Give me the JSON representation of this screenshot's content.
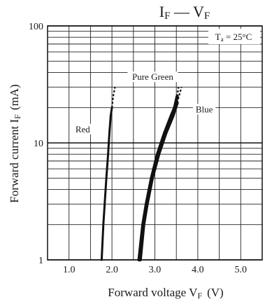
{
  "chart_data": {
    "type": "line",
    "title_main": "I",
    "title_sub1": "F",
    "title_dash": " — V",
    "title_sub2": "F",
    "xlabel_main": "Forward voltage  V",
    "xlabel_sub": "F",
    "xlabel_unit": "(V)",
    "ylabel_main": "Forward current  I",
    "ylabel_sub": "F",
    "ylabel_unit": "(mA)",
    "condition_main": "T",
    "condition_sub": "a",
    "condition_rest": " = 25°C",
    "x_scale": "linear",
    "y_scale": "log",
    "xlim": [
      0.5,
      5.5
    ],
    "ylim": [
      1,
      100
    ],
    "x_ticks": [
      1.0,
      2.0,
      3.0,
      4.0,
      5.0
    ],
    "x_tick_labels": [
      "1.0",
      "2.0",
      "3.0",
      "4.0",
      "5.0"
    ],
    "y_ticks": [
      1,
      10,
      100
    ],
    "y_tick_labels": [
      "1",
      "10",
      "100"
    ],
    "grid": true,
    "series": [
      {
        "name": "Red",
        "color": "#111111",
        "points": [
          [
            1.76,
            1
          ],
          [
            1.8,
            2
          ],
          [
            1.83,
            3
          ],
          [
            1.87,
            5
          ],
          [
            1.91,
            8
          ],
          [
            1.94,
            12
          ],
          [
            1.97,
            17
          ],
          [
            2.0,
            20
          ]
        ],
        "dashed_points": [
          [
            2.0,
            20
          ],
          [
            2.03,
            25
          ],
          [
            2.07,
            30
          ]
        ]
      },
      {
        "name": "Pure Green",
        "color": "#111111",
        "points": [
          [
            2.63,
            1
          ],
          [
            2.72,
            2
          ],
          [
            2.8,
            3
          ],
          [
            2.92,
            5
          ],
          [
            3.06,
            8
          ],
          [
            3.22,
            12
          ],
          [
            3.38,
            17
          ],
          [
            3.46,
            20
          ],
          [
            3.52,
            25
          ]
        ],
        "dashed_points": [
          [
            3.52,
            25
          ],
          [
            3.55,
            30
          ]
        ]
      },
      {
        "name": "Blue",
        "color": "#111111",
        "points": [
          [
            2.66,
            1
          ],
          [
            2.74,
            2
          ],
          [
            2.82,
            3
          ],
          [
            2.94,
            5
          ],
          [
            3.09,
            8
          ],
          [
            3.25,
            12
          ],
          [
            3.42,
            17
          ],
          [
            3.52,
            22
          ]
        ],
        "dashed_points": [
          [
            3.52,
            22
          ],
          [
            3.62,
            30
          ]
        ]
      }
    ],
    "annotations": [
      {
        "text": "Red",
        "x": 1.32,
        "y": 12.5
      },
      {
        "text": "Pure Green",
        "x": 2.95,
        "y": 35
      },
      {
        "text": "Blue",
        "x": 4.15,
        "y": 18.5
      }
    ]
  }
}
